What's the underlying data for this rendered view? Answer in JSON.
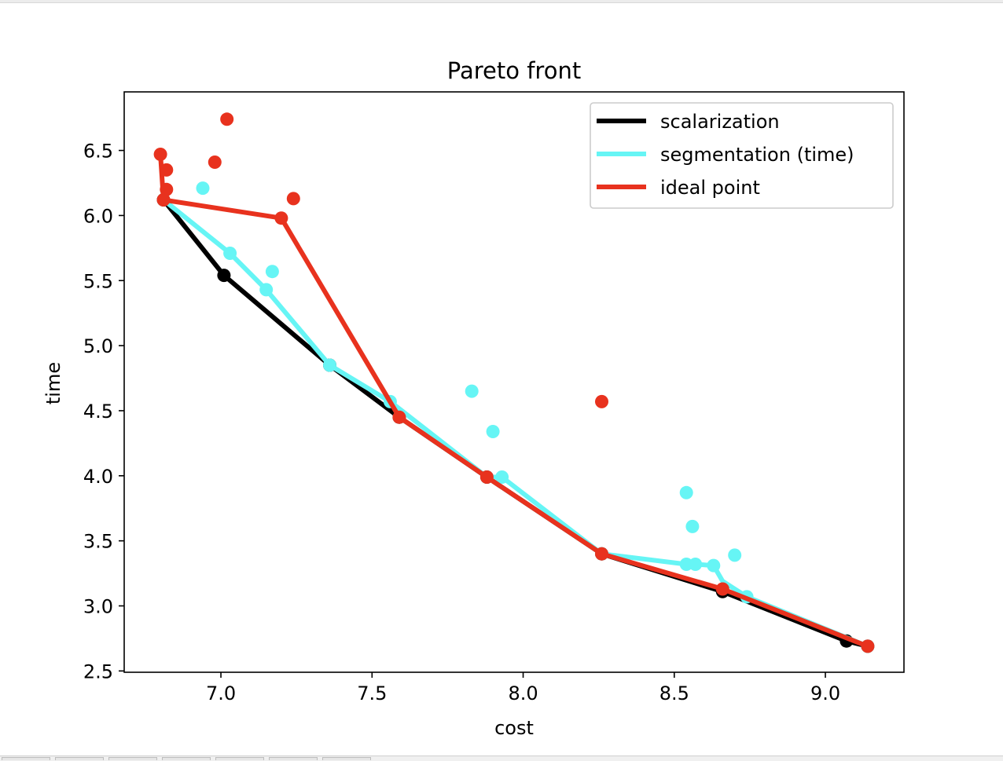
{
  "chart_data": {
    "type": "scatter",
    "title": "Pareto front",
    "xlabel": "cost",
    "ylabel": "time",
    "xlim": [
      6.68,
      9.26
    ],
    "ylim": [
      2.49,
      6.95
    ],
    "xticks": [
      7.0,
      7.5,
      8.0,
      8.5,
      9.0
    ],
    "xtick_labels": [
      "7.0",
      "7.5",
      "8.0",
      "8.5",
      "9.0"
    ],
    "yticks": [
      2.5,
      3.0,
      3.5,
      4.0,
      4.5,
      5.0,
      5.5,
      6.0,
      6.5
    ],
    "ytick_labels": [
      "2.5",
      "3.0",
      "3.5",
      "4.0",
      "4.5",
      "5.0",
      "5.5",
      "6.0",
      "6.5"
    ],
    "grid": false,
    "legend_position": "upper right",
    "series": [
      {
        "name": "scalarization",
        "color": "#000000",
        "line": [
          [
            6.81,
            6.12
          ],
          [
            7.01,
            5.54
          ],
          [
            7.36,
            4.85
          ],
          [
            7.59,
            4.45
          ],
          [
            7.88,
            3.99
          ],
          [
            8.26,
            3.4
          ],
          [
            8.66,
            3.11
          ],
          [
            9.07,
            2.73
          ],
          [
            9.14,
            2.69
          ]
        ],
        "points": [
          [
            6.81,
            6.12
          ],
          [
            7.01,
            5.54
          ],
          [
            7.36,
            4.85
          ],
          [
            7.59,
            4.45
          ],
          [
            7.88,
            3.99
          ],
          [
            8.26,
            3.4
          ],
          [
            8.66,
            3.11
          ],
          [
            9.07,
            2.73
          ],
          [
            9.14,
            2.69
          ]
        ]
      },
      {
        "name": "segmentation (time)",
        "color": "#66f5f5",
        "line": [
          [
            6.81,
            6.12
          ],
          [
            7.03,
            5.71
          ],
          [
            7.15,
            5.43
          ],
          [
            7.36,
            4.85
          ],
          [
            7.56,
            4.57
          ],
          [
            7.88,
            3.99
          ],
          [
            7.93,
            3.99
          ],
          [
            8.26,
            3.4
          ],
          [
            8.54,
            3.32
          ],
          [
            8.57,
            3.32
          ],
          [
            8.63,
            3.31
          ],
          [
            8.66,
            3.19
          ],
          [
            8.74,
            3.07
          ],
          [
            9.14,
            2.69
          ]
        ],
        "points": [
          [
            6.94,
            6.21
          ],
          [
            7.03,
            5.71
          ],
          [
            7.15,
            5.43
          ],
          [
            7.17,
            5.57
          ],
          [
            7.36,
            4.85
          ],
          [
            7.56,
            4.57
          ],
          [
            7.83,
            4.65
          ],
          [
            7.9,
            4.34
          ],
          [
            7.93,
            3.99
          ],
          [
            8.26,
            3.4
          ],
          [
            8.54,
            3.87
          ],
          [
            8.56,
            3.61
          ],
          [
            8.54,
            3.32
          ],
          [
            8.57,
            3.32
          ],
          [
            8.63,
            3.31
          ],
          [
            8.7,
            3.39
          ],
          [
            8.74,
            3.07
          ],
          [
            9.14,
            2.69
          ]
        ]
      },
      {
        "name": "ideal point",
        "color": "#e8321e",
        "line": [
          [
            6.8,
            6.47
          ],
          [
            6.81,
            6.12
          ],
          [
            7.2,
            5.98
          ],
          [
            7.59,
            4.45
          ],
          [
            7.88,
            3.99
          ],
          [
            8.26,
            3.4
          ],
          [
            8.66,
            3.13
          ],
          [
            9.14,
            2.69
          ]
        ],
        "points": [
          [
            6.8,
            6.47
          ],
          [
            6.82,
            6.35
          ],
          [
            6.82,
            6.2
          ],
          [
            6.81,
            6.12
          ],
          [
            6.98,
            6.41
          ],
          [
            7.02,
            6.74
          ],
          [
            7.2,
            5.98
          ],
          [
            7.24,
            6.13
          ],
          [
            7.59,
            4.45
          ],
          [
            7.88,
            3.99
          ],
          [
            8.26,
            4.57
          ],
          [
            8.26,
            3.4
          ],
          [
            8.66,
            3.13
          ],
          [
            9.14,
            2.69
          ]
        ]
      }
    ]
  }
}
